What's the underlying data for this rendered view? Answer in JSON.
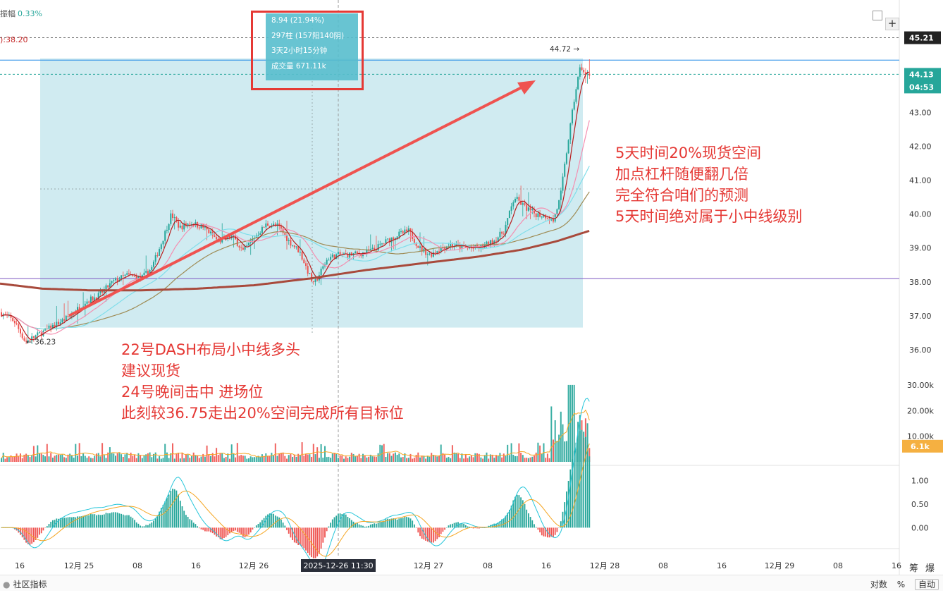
{
  "header": {
    "amplitude_label": "振幅",
    "amplitude_value": "0.33%",
    "ma_label": "):38.20"
  },
  "tooltip": {
    "change": "8.94 (21.94%)",
    "bars": "297柱 (157阳140阴)",
    "duration": "3天2小时15分钟",
    "volume": "成交量 671.11k"
  },
  "annotations": {
    "right": [
      "5天时间20%现货空间",
      "加点杠杆随便翻几倍",
      "完全符合咱们的预测",
      "5天时间绝对属于小中线级别"
    ],
    "left": [
      "22号DASH布局小中线多头",
      "建议现货",
      "24号晚间击中 进场位",
      "此刻较36.75走出20%空间完成所有目标位"
    ]
  },
  "colors": {
    "up": "#26a69a",
    "down": "#ef5350",
    "range_fill": "#cdeaf0",
    "arrow": "#ef5350",
    "annotation_text": "#e53935",
    "ma_fast": "#b71c1c",
    "ma_mid": "#f48fb1",
    "ma_cyan": "#80deea",
    "ma_olive": "#9e8b54",
    "ma_slow": "#a84a3c",
    "hline_purple": "#7e57c2",
    "hline_blue": "#1e88e5",
    "price_badge": "#26a69a",
    "vol_badge": "#f5b041"
  },
  "footer": {
    "left_label": "社区指标",
    "right_items": [
      "对数",
      "%",
      "自动"
    ],
    "corner_items": [
      "筹",
      "爆"
    ]
  },
  "controls": {
    "plus_icon": "+"
  },
  "chart_data": [
    {
      "type": "candlestick",
      "title": "",
      "price_scale": {
        "ticks": [
          "45.21",
          "43.00",
          "42.00",
          "41.00",
          "40.00",
          "39.00",
          "38.00",
          "37.00",
          "36.00"
        ],
        "ylim": [
          35.6,
          45.7
        ]
      },
      "x_ticks": [
        "16",
        "12月 25",
        "08",
        "16",
        "12月 26",
        "2025-12-26 11:30",
        "12月 27",
        "08",
        "16",
        "12月 28",
        "08",
        "16",
        "12月 29",
        "08",
        "16"
      ],
      "current_price": "44.13",
      "countdown": "04:53",
      "top_marker": "45.21",
      "high_label": "44.72",
      "low_label": "36.23",
      "horizontal_lines": [
        38.1,
        44.55
      ],
      "measure_range": {
        "y_from": 36.65,
        "y_to": 44.6
      },
      "arrow": {
        "from": 37.0,
        "to": 43.95
      },
      "path": [
        [
          0,
          37.1
        ],
        [
          20,
          36.85
        ],
        [
          36,
          36.23
        ],
        [
          55,
          36.45
        ],
        [
          80,
          36.75
        ],
        [
          100,
          37.0
        ],
        [
          120,
          37.4
        ],
        [
          140,
          37.6
        ],
        [
          160,
          38.0
        ],
        [
          180,
          38.2
        ],
        [
          200,
          38.1
        ],
        [
          215,
          38.4
        ],
        [
          230,
          39.2
        ],
        [
          243,
          40.0
        ],
        [
          255,
          39.6
        ],
        [
          270,
          39.75
        ],
        [
          290,
          39.6
        ],
        [
          310,
          39.2
        ],
        [
          330,
          39.35
        ],
        [
          345,
          38.9
        ],
        [
          360,
          39.3
        ],
        [
          378,
          39.7
        ],
        [
          395,
          39.65
        ],
        [
          410,
          39.2
        ],
        [
          425,
          38.9
        ],
        [
          435,
          38.4
        ],
        [
          445,
          37.9
        ],
        [
          455,
          38.3
        ],
        [
          465,
          38.7
        ],
        [
          480,
          38.8
        ],
        [
          495,
          38.8
        ],
        [
          515,
          38.85
        ],
        [
          530,
          38.95
        ],
        [
          548,
          39.2
        ],
        [
          565,
          39.4
        ],
        [
          580,
          39.5
        ],
        [
          595,
          39.0
        ],
        [
          610,
          38.8
        ],
        [
          625,
          39.0
        ],
        [
          640,
          39.1
        ],
        [
          660,
          39.0
        ],
        [
          680,
          39.0
        ],
        [
          700,
          39.2
        ],
        [
          715,
          39.5
        ],
        [
          730,
          40.5
        ],
        [
          745,
          40.2
        ],
        [
          760,
          40.0
        ],
        [
          775,
          39.95
        ],
        [
          785,
          39.8
        ],
        [
          795,
          40.5
        ],
        [
          805,
          42.0
        ],
        [
          812,
          43.0
        ],
        [
          818,
          43.8
        ],
        [
          824,
          44.4
        ],
        [
          830,
          44.1
        ],
        [
          838,
          44.13
        ]
      ],
      "ma_slow_path": [
        [
          0,
          37.95
        ],
        [
          60,
          37.8
        ],
        [
          130,
          37.75
        ],
        [
          200,
          37.75
        ],
        [
          280,
          37.8
        ],
        [
          360,
          37.9
        ],
        [
          440,
          38.1
        ],
        [
          520,
          38.35
        ],
        [
          600,
          38.55
        ],
        [
          680,
          38.75
        ],
        [
          740,
          38.95
        ],
        [
          790,
          39.2
        ],
        [
          838,
          39.52
        ]
      ]
    },
    {
      "type": "bar",
      "title": "",
      "series": [
        {
          "name": "",
          "values": []
        }
      ],
      "ticks": [
        "30.00k",
        "20.00k",
        "10.00k"
      ],
      "current": "6.1k",
      "ylim": [
        0,
        33000
      ]
    },
    {
      "type": "bar",
      "title": "",
      "ticks": [
        "1.00",
        "0.50",
        "0.00"
      ],
      "ylim": [
        -0.4,
        1.25
      ]
    }
  ]
}
